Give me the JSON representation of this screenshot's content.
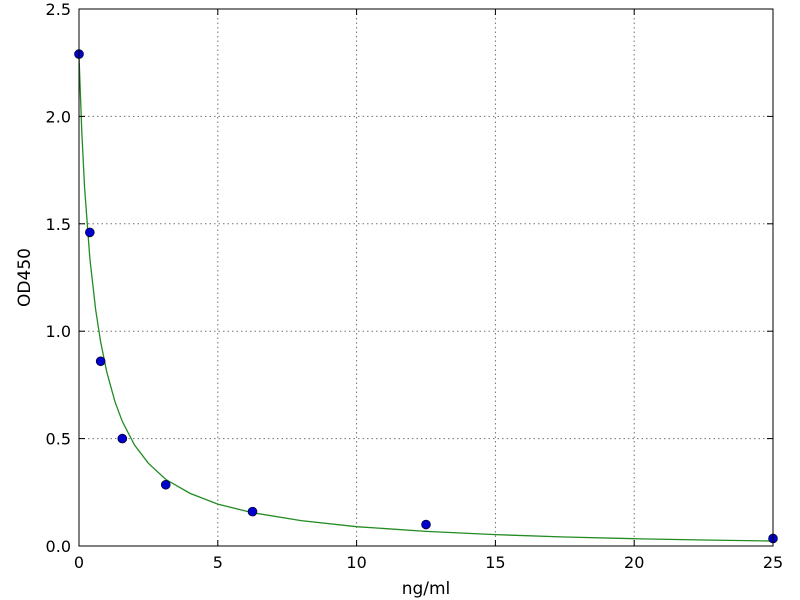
{
  "chart_data": {
    "type": "scatter",
    "xlabel": "ng/ml",
    "ylabel": "OD450",
    "xlim": [
      0,
      25
    ],
    "ylim": [
      0,
      2.5
    ],
    "xticks": [
      0,
      5,
      10,
      15,
      20,
      25
    ],
    "xtick_labels": [
      "0",
      "5",
      "10",
      "15",
      "20",
      "25"
    ],
    "yticks": [
      0.0,
      0.5,
      1.0,
      1.5,
      2.0,
      2.5
    ],
    "ytick_labels": [
      "0.0",
      "0.5",
      "1.0",
      "1.5",
      "2.0",
      "2.5"
    ],
    "grid": true,
    "series": [
      {
        "kind": "points",
        "color": "#0000cc",
        "x": [
          0,
          0.39,
          0.78,
          1.56,
          3.125,
          6.25,
          12.5,
          25
        ],
        "y": [
          2.29,
          1.46,
          0.86,
          0.5,
          0.285,
          0.16,
          0.1,
          0.035
        ]
      },
      {
        "kind": "fitted-curve",
        "color": "#228b22",
        "x": [
          0,
          0.1,
          0.2,
          0.39,
          0.6,
          0.78,
          1.0,
          1.3,
          1.56,
          2.0,
          2.5,
          3.125,
          4.0,
          5.0,
          6.25,
          8.0,
          10.0,
          12.5,
          15.0,
          17.5,
          20.0,
          22.5,
          25.0
        ],
        "y": [
          2.28,
          1.93,
          1.67,
          1.34,
          1.1,
          0.95,
          0.81,
          0.67,
          0.58,
          0.47,
          0.385,
          0.31,
          0.245,
          0.195,
          0.155,
          0.118,
          0.09,
          0.068,
          0.053,
          0.042,
          0.034,
          0.028,
          0.023
        ]
      }
    ]
  }
}
